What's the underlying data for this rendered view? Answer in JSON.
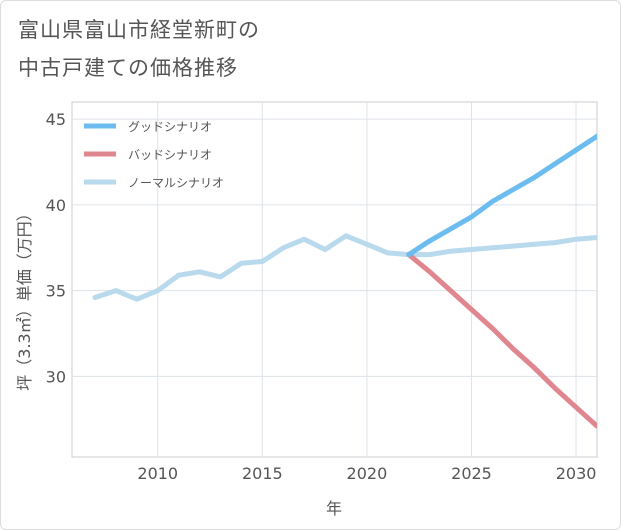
{
  "title_lines": [
    "富山県富山市経堂新町の",
    "中古戸建ての価格推移"
  ],
  "chart_data": {
    "type": "line",
    "title": "富山県富山市経堂新町の中古戸建ての価格推移",
    "xlabel": "年",
    "ylabel": "坪（3.3㎡）単価（万円）",
    "xlim": [
      2005.9,
      2031
    ],
    "ylim": [
      25.3,
      46
    ],
    "x_ticks": [
      2010,
      2015,
      2020,
      2025,
      2030
    ],
    "y_ticks": [
      30,
      35,
      40,
      45
    ],
    "grid": true,
    "legend_position": "top-left",
    "series": [
      {
        "name": "グッドシナリオ",
        "color": "#6cbcf0",
        "x": [
          2022,
          2023,
          2024,
          2025,
          2026,
          2027,
          2028,
          2029,
          2030,
          2031
        ],
        "y": [
          37.1,
          37.9,
          38.6,
          39.3,
          40.2,
          40.9,
          41.6,
          42.4,
          43.2,
          44.0
        ]
      },
      {
        "name": "バッドシナリオ",
        "color": "#e0868f",
        "x": [
          2022,
          2023,
          2024,
          2025,
          2026,
          2027,
          2028,
          2029,
          2030,
          2031
        ],
        "y": [
          37.1,
          36.1,
          35.0,
          33.9,
          32.8,
          31.6,
          30.5,
          29.3,
          28.2,
          27.1
        ]
      },
      {
        "name": "ノーマルシナリオ",
        "color": "#b9d9ec",
        "x": [
          2007,
          2008,
          2009,
          2010,
          2011,
          2012,
          2013,
          2014,
          2015,
          2016,
          2017,
          2018,
          2019,
          2020,
          2021,
          2022,
          2023,
          2024,
          2025,
          2026,
          2027,
          2028,
          2029,
          2030,
          2031
        ],
        "y": [
          34.6,
          35.0,
          34.5,
          35.0,
          35.9,
          36.1,
          35.8,
          36.6,
          36.7,
          37.5,
          38.0,
          37.4,
          38.2,
          37.7,
          37.2,
          37.1,
          37.1,
          37.3,
          37.4,
          37.5,
          37.6,
          37.7,
          37.8,
          38.0,
          38.1
        ]
      }
    ]
  }
}
